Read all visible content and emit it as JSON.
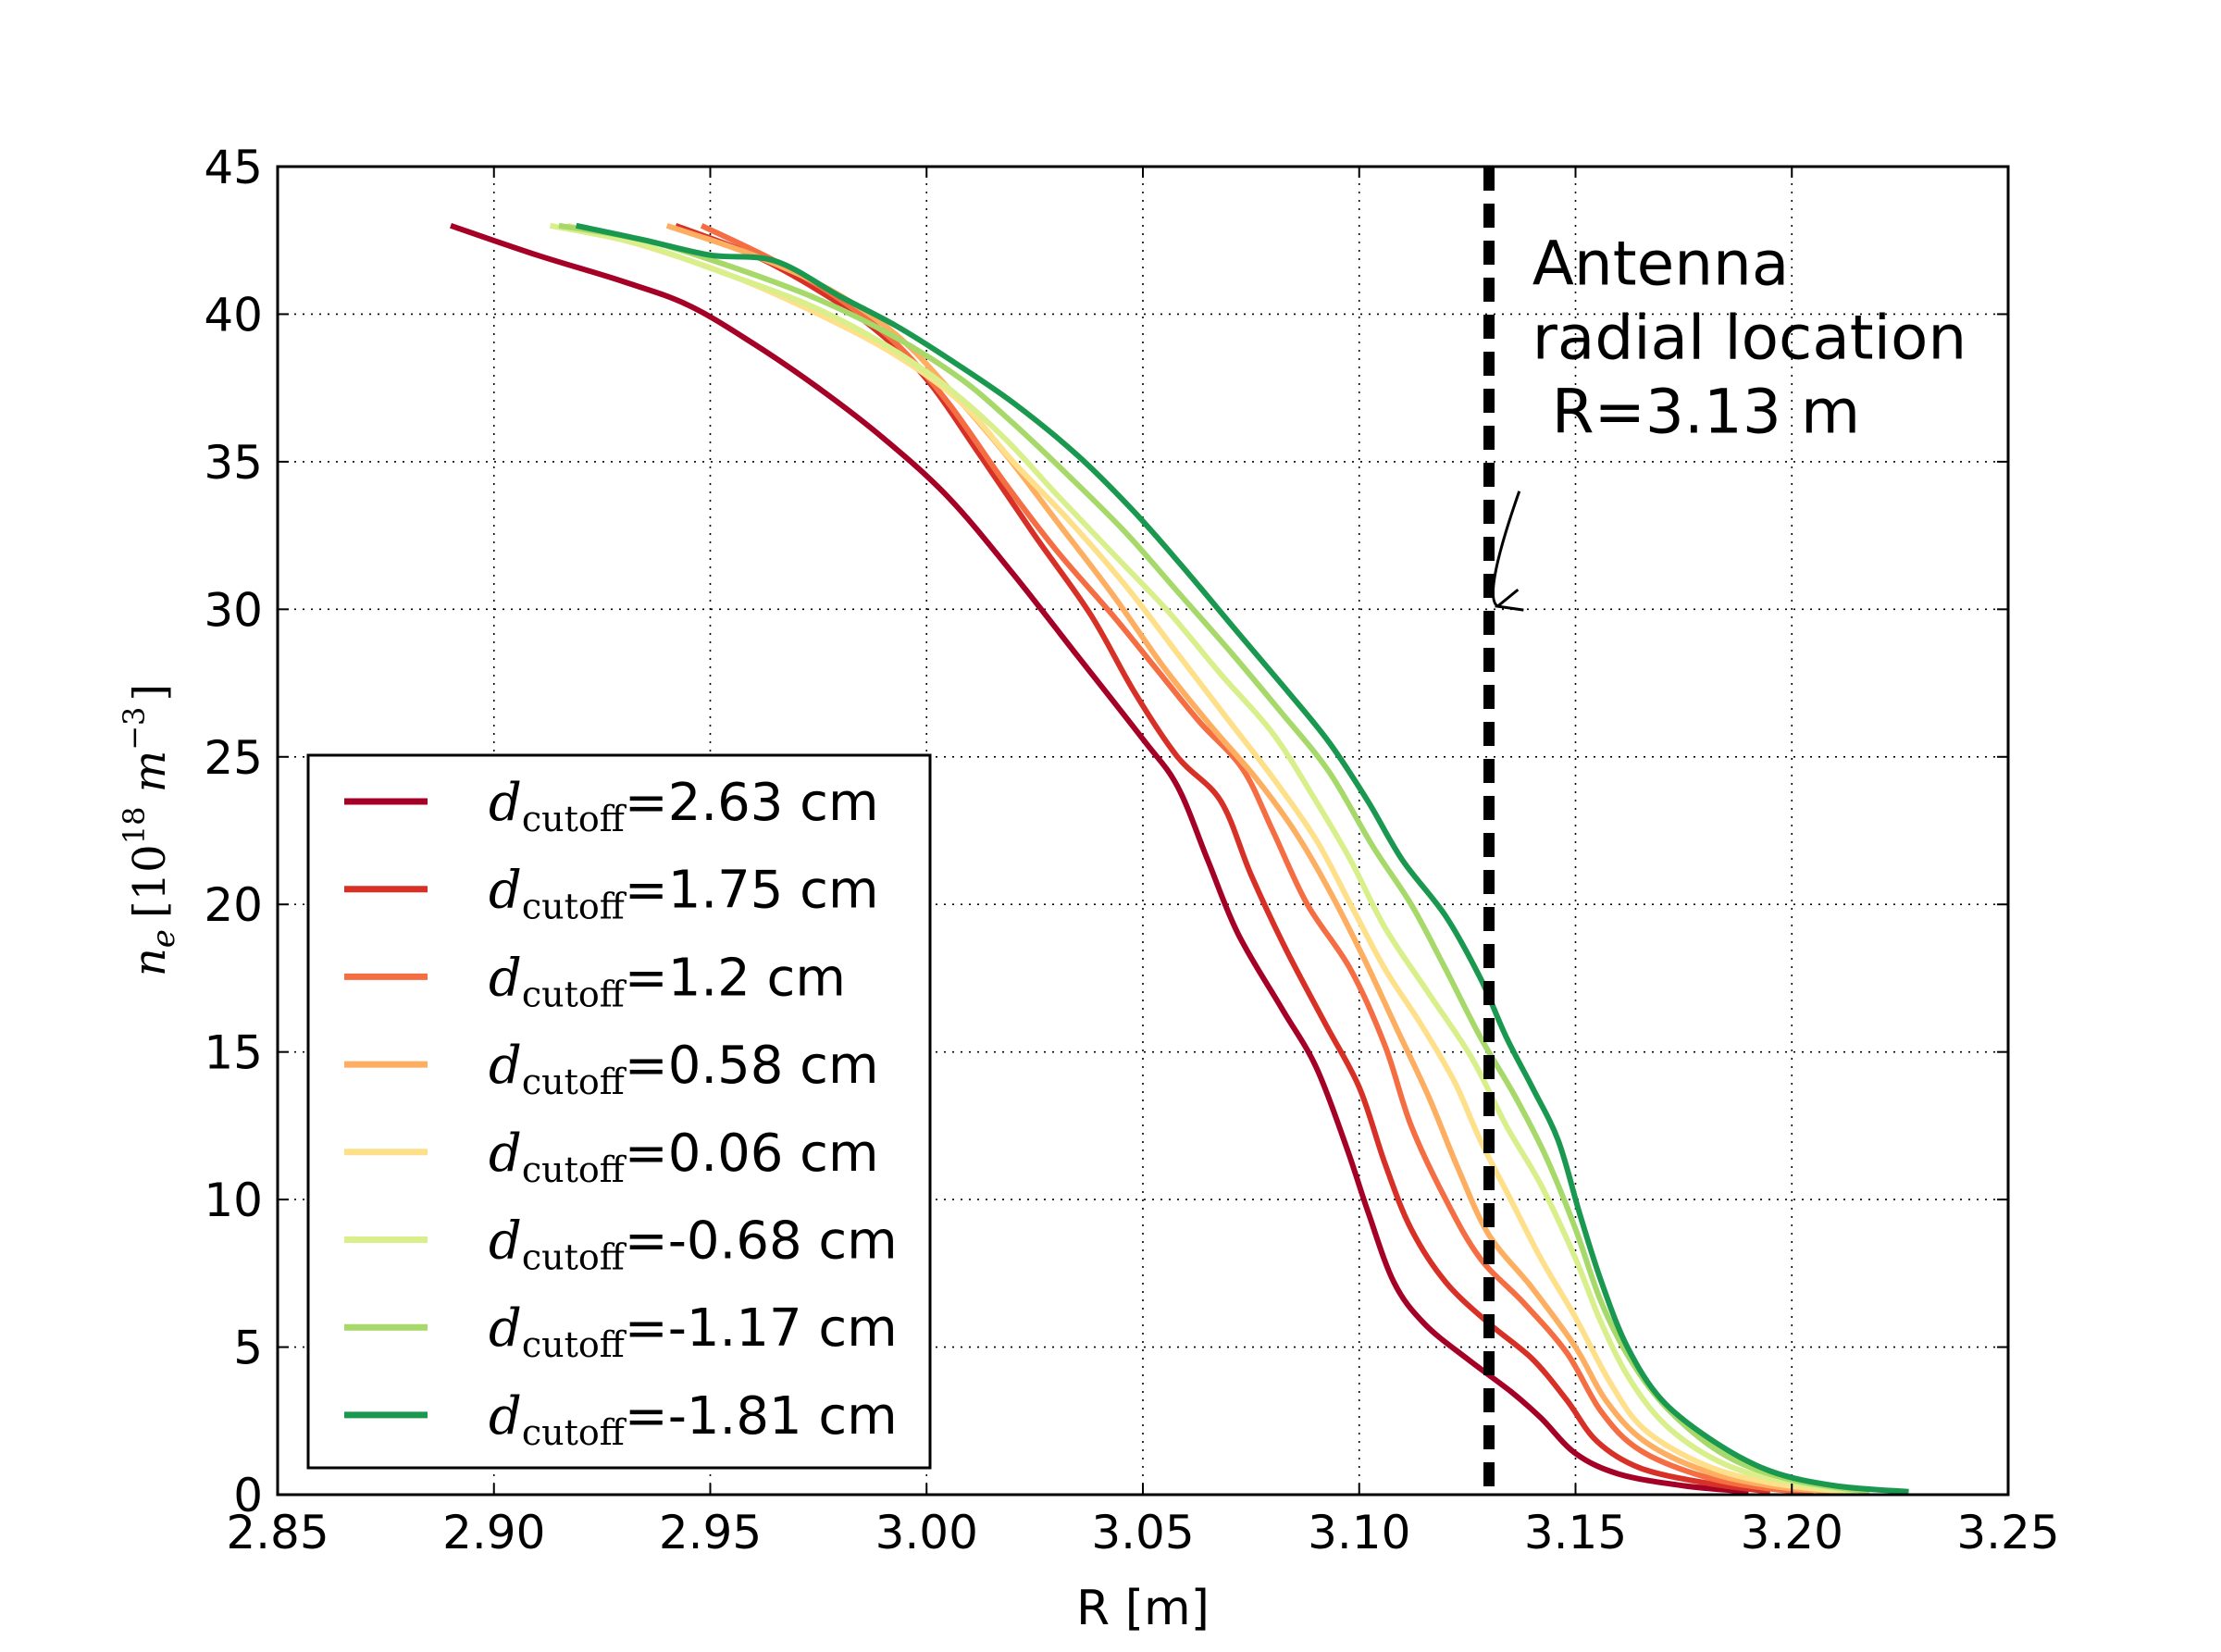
{
  "chart_data": {
    "type": "line",
    "xlabel": "R [m]",
    "ylabel": {
      "symbol": "n",
      "subscript": "e",
      "prefix": "[10",
      "power": "18",
      "unit": " m",
      "unit_power": "−3",
      "suffix": "]"
    },
    "xlim": [
      2.85,
      3.25
    ],
    "ylim": [
      0,
      45
    ],
    "x_ticks": [
      2.85,
      2.9,
      2.95,
      3.0,
      3.05,
      3.1,
      3.15,
      3.2,
      3.25
    ],
    "x_tick_labels": [
      "2.85",
      "2.90",
      "2.95",
      "3.00",
      "3.05",
      "3.10",
      "3.15",
      "3.20",
      "3.25"
    ],
    "y_ticks": [
      0,
      5,
      10,
      15,
      20,
      25,
      30,
      35,
      40,
      45
    ],
    "y_tick_labels": [
      "0",
      "5",
      "10",
      "15",
      "20",
      "25",
      "30",
      "35",
      "40",
      "45"
    ],
    "grid": true,
    "grid_style": "dotted",
    "legend_position": "lower-left",
    "legend_symbol": "d",
    "legend_subscript": "cutoff",
    "vline": {
      "x": 3.13,
      "style": "dashed",
      "color": "#000000"
    },
    "annotation": {
      "lines": [
        "Antenna",
        "radial location",
        " R=3.13 m"
      ],
      "text_position": [
        3.14,
        41.0
      ],
      "arrow_start": [
        3.137,
        34.0
      ],
      "arrow_end": [
        3.132,
        30.1
      ]
    },
    "series": [
      {
        "name": "=2.63 cm",
        "color": "#a50026",
        "points": [
          [
            2.89,
            43.0
          ],
          [
            2.91,
            42.0
          ],
          [
            2.93,
            41.1
          ],
          [
            2.945,
            40.3
          ],
          [
            2.96,
            39.0
          ],
          [
            2.975,
            37.5
          ],
          [
            2.99,
            35.8
          ],
          [
            3.005,
            33.8
          ],
          [
            3.02,
            31.2
          ],
          [
            3.035,
            28.4
          ],
          [
            3.05,
            25.6
          ],
          [
            3.058,
            24.0
          ],
          [
            3.065,
            21.5
          ],
          [
            3.072,
            19.0
          ],
          [
            3.082,
            16.5
          ],
          [
            3.09,
            14.5
          ],
          [
            3.097,
            11.8
          ],
          [
            3.102,
            9.6
          ],
          [
            3.108,
            7.2
          ],
          [
            3.115,
            5.8
          ],
          [
            3.125,
            4.6
          ],
          [
            3.135,
            3.5
          ],
          [
            3.142,
            2.6
          ],
          [
            3.15,
            1.4
          ],
          [
            3.16,
            0.7
          ],
          [
            3.175,
            0.3
          ],
          [
            3.19,
            0.1
          ]
        ]
      },
      {
        "name": "=1.75 cm",
        "color": "#d73027",
        "points": [
          [
            2.942,
            43.0
          ],
          [
            2.96,
            42.0
          ],
          [
            2.975,
            40.8
          ],
          [
            2.988,
            39.5
          ],
          [
            3.0,
            37.8
          ],
          [
            3.012,
            35.3
          ],
          [
            3.025,
            32.5
          ],
          [
            3.038,
            29.8
          ],
          [
            3.048,
            27.2
          ],
          [
            3.058,
            25.0
          ],
          [
            3.068,
            23.5
          ],
          [
            3.075,
            21.0
          ],
          [
            3.083,
            18.5
          ],
          [
            3.092,
            16.0
          ],
          [
            3.1,
            13.8
          ],
          [
            3.106,
            11.2
          ],
          [
            3.112,
            9.0
          ],
          [
            3.12,
            7.2
          ],
          [
            3.13,
            5.8
          ],
          [
            3.14,
            4.6
          ],
          [
            3.148,
            3.2
          ],
          [
            3.155,
            1.8
          ],
          [
            3.165,
            0.9
          ],
          [
            3.18,
            0.4
          ],
          [
            3.195,
            0.1
          ]
        ]
      },
      {
        "name": "=1.2 cm",
        "color": "#f46d43",
        "points": [
          [
            2.948,
            43.0
          ],
          [
            2.965,
            41.8
          ],
          [
            2.98,
            40.5
          ],
          [
            2.993,
            39.0
          ],
          [
            3.005,
            37.0
          ],
          [
            3.018,
            34.3
          ],
          [
            3.03,
            32.0
          ],
          [
            3.043,
            29.8
          ],
          [
            3.053,
            28.0
          ],
          [
            3.063,
            26.2
          ],
          [
            3.073,
            24.6
          ],
          [
            3.08,
            22.5
          ],
          [
            3.088,
            20.0
          ],
          [
            3.098,
            17.8
          ],
          [
            3.106,
            15.2
          ],
          [
            3.112,
            12.5
          ],
          [
            3.12,
            10.0
          ],
          [
            3.128,
            8.0
          ],
          [
            3.138,
            6.5
          ],
          [
            3.148,
            4.8
          ],
          [
            3.156,
            2.8
          ],
          [
            3.165,
            1.5
          ],
          [
            3.18,
            0.6
          ],
          [
            3.195,
            0.2
          ],
          [
            3.205,
            0.1
          ]
        ]
      },
      {
        "name": "=0.58 cm",
        "color": "#fdae61",
        "points": [
          [
            2.94,
            43.0
          ],
          [
            2.96,
            42.0
          ],
          [
            2.978,
            40.8
          ],
          [
            2.993,
            39.3
          ],
          [
            3.005,
            37.5
          ],
          [
            3.018,
            35.3
          ],
          [
            3.03,
            33.0
          ],
          [
            3.043,
            30.5
          ],
          [
            3.055,
            28.0
          ],
          [
            3.066,
            26.0
          ],
          [
            3.076,
            24.3
          ],
          [
            3.085,
            22.5
          ],
          [
            3.093,
            20.5
          ],
          [
            3.101,
            18.2
          ],
          [
            3.108,
            16.0
          ],
          [
            3.116,
            13.5
          ],
          [
            3.123,
            11.0
          ],
          [
            3.13,
            8.8
          ],
          [
            3.14,
            7.0
          ],
          [
            3.15,
            5.0
          ],
          [
            3.157,
            3.2
          ],
          [
            3.166,
            1.8
          ],
          [
            3.18,
            0.8
          ],
          [
            3.195,
            0.3
          ],
          [
            3.21,
            0.1
          ]
        ]
      },
      {
        "name": "=0.06 cm",
        "color": "#fee08b",
        "points": [
          [
            2.917,
            43.0
          ],
          [
            2.935,
            42.3
          ],
          [
            2.955,
            41.3
          ],
          [
            2.975,
            40.0
          ],
          [
            2.993,
            38.6
          ],
          [
            3.008,
            37.0
          ],
          [
            3.02,
            35.0
          ],
          [
            3.033,
            33.0
          ],
          [
            3.046,
            30.8
          ],
          [
            3.058,
            28.5
          ],
          [
            3.07,
            26.2
          ],
          [
            3.08,
            24.3
          ],
          [
            3.09,
            22.2
          ],
          [
            3.098,
            20.0
          ],
          [
            3.106,
            17.8
          ],
          [
            3.114,
            16.0
          ],
          [
            3.122,
            14.0
          ],
          [
            3.128,
            12.0
          ],
          [
            3.135,
            10.0
          ],
          [
            3.142,
            8.0
          ],
          [
            3.15,
            6.0
          ],
          [
            3.158,
            3.8
          ],
          [
            3.166,
            2.2
          ],
          [
            3.18,
            1.0
          ],
          [
            3.195,
            0.4
          ],
          [
            3.212,
            0.1
          ]
        ]
      },
      {
        "name": "=-0.68 cm",
        "color": "#d9ef8b",
        "points": [
          [
            2.913,
            43.0
          ],
          [
            2.933,
            42.4
          ],
          [
            2.953,
            41.4
          ],
          [
            2.973,
            40.3
          ],
          [
            2.99,
            39.0
          ],
          [
            3.005,
            37.5
          ],
          [
            3.018,
            35.8
          ],
          [
            3.03,
            33.9
          ],
          [
            3.043,
            31.9
          ],
          [
            3.056,
            29.9
          ],
          [
            3.068,
            27.8
          ],
          [
            3.08,
            25.8
          ],
          [
            3.09,
            23.5
          ],
          [
            3.098,
            21.5
          ],
          [
            3.106,
            19.2
          ],
          [
            3.116,
            17.0
          ],
          [
            3.126,
            14.8
          ],
          [
            3.134,
            12.5
          ],
          [
            3.142,
            10.5
          ],
          [
            3.15,
            8.0
          ],
          [
            3.156,
            5.8
          ],
          [
            3.163,
            3.8
          ],
          [
            3.172,
            2.2
          ],
          [
            3.185,
            1.0
          ],
          [
            3.2,
            0.4
          ],
          [
            3.215,
            0.1
          ]
        ]
      },
      {
        "name": "=-1.17 cm",
        "color": "#a6d96a",
        "points": [
          [
            2.915,
            43.0
          ],
          [
            2.935,
            42.5
          ],
          [
            2.955,
            41.6
          ],
          [
            2.975,
            40.5
          ],
          [
            2.993,
            39.2
          ],
          [
            3.008,
            37.8
          ],
          [
            3.02,
            36.3
          ],
          [
            3.033,
            34.5
          ],
          [
            3.046,
            32.6
          ],
          [
            3.058,
            30.6
          ],
          [
            3.07,
            28.6
          ],
          [
            3.082,
            26.5
          ],
          [
            3.093,
            24.5
          ],
          [
            3.103,
            22.0
          ],
          [
            3.112,
            20.0
          ],
          [
            3.12,
            17.8
          ],
          [
            3.128,
            15.5
          ],
          [
            3.136,
            13.5
          ],
          [
            3.143,
            11.5
          ],
          [
            3.15,
            9.0
          ],
          [
            3.156,
            6.5
          ],
          [
            3.163,
            4.5
          ],
          [
            3.172,
            2.8
          ],
          [
            3.185,
            1.3
          ],
          [
            3.2,
            0.5
          ],
          [
            3.218,
            0.1
          ]
        ]
      },
      {
        "name": "=-1.81 cm",
        "color": "#1a9850",
        "points": [
          [
            2.919,
            43.0
          ],
          [
            2.935,
            42.5
          ],
          [
            2.95,
            42.0
          ],
          [
            2.965,
            41.8
          ],
          [
            2.98,
            40.6
          ],
          [
            2.993,
            39.6
          ],
          [
            3.005,
            38.5
          ],
          [
            3.02,
            37.0
          ],
          [
            3.035,
            35.2
          ],
          [
            3.048,
            33.3
          ],
          [
            3.06,
            31.3
          ],
          [
            3.072,
            29.2
          ],
          [
            3.083,
            27.3
          ],
          [
            3.093,
            25.5
          ],
          [
            3.102,
            23.5
          ],
          [
            3.11,
            21.5
          ],
          [
            3.12,
            19.6
          ],
          [
            3.128,
            17.5
          ],
          [
            3.134,
            15.5
          ],
          [
            3.14,
            13.8
          ],
          [
            3.146,
            12.0
          ],
          [
            3.151,
            9.5
          ],
          [
            3.156,
            7.2
          ],
          [
            3.162,
            5.0
          ],
          [
            3.17,
            3.2
          ],
          [
            3.182,
            1.8
          ],
          [
            3.195,
            0.8
          ],
          [
            3.21,
            0.3
          ],
          [
            3.227,
            0.1
          ]
        ]
      }
    ]
  }
}
